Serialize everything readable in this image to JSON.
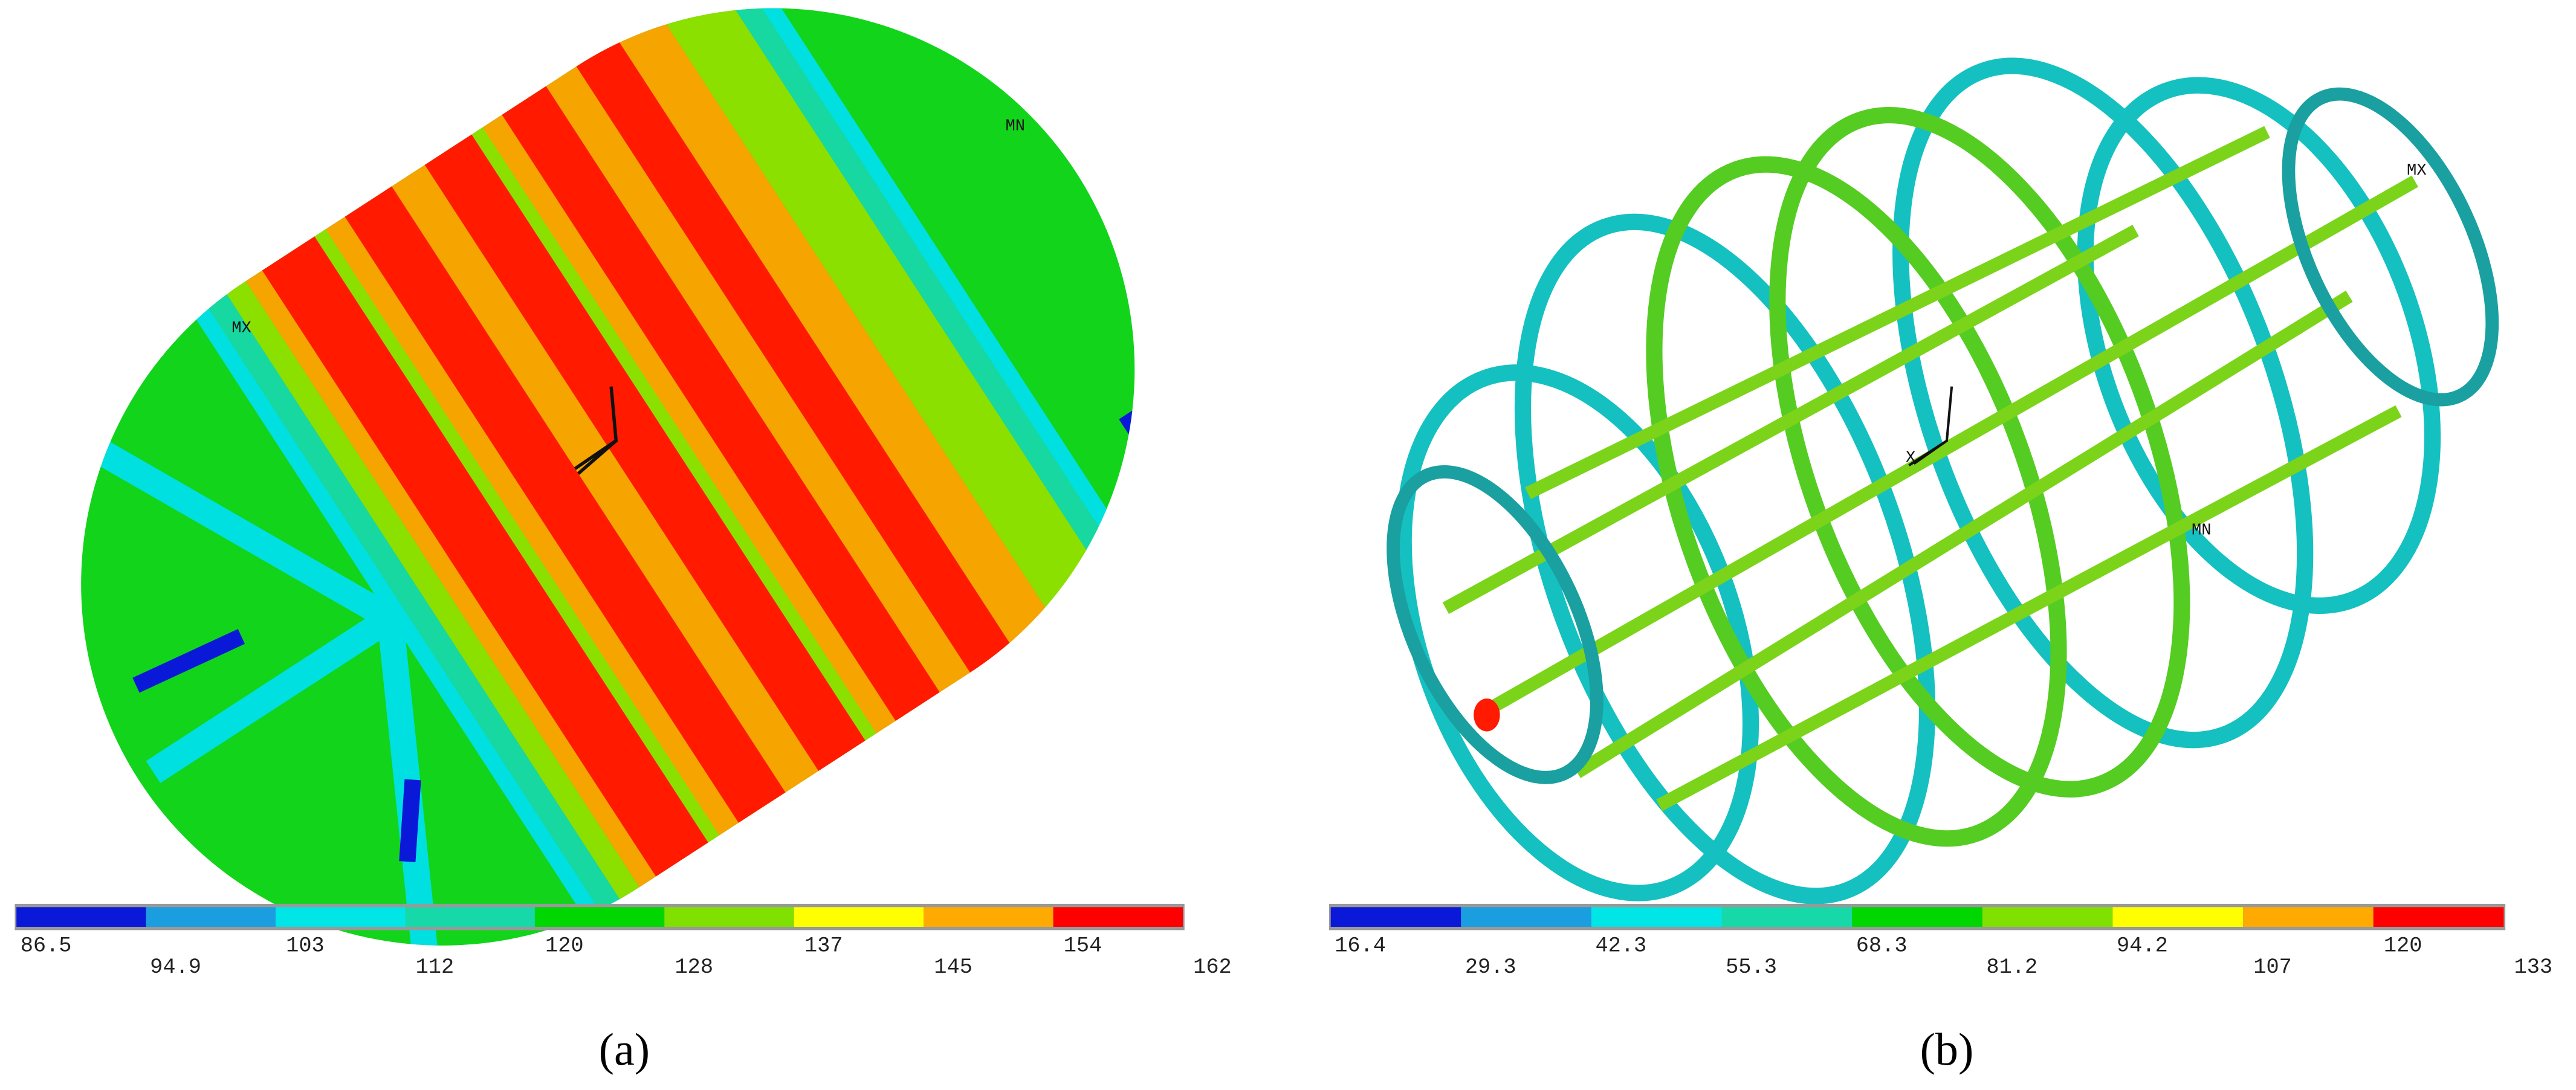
{
  "panels": [
    {
      "caption": "(a)",
      "annotations": [
        "MX",
        "MN"
      ],
      "legend": [
        86.5,
        94.9,
        103,
        112,
        120,
        128,
        137,
        145,
        154,
        162
      ]
    },
    {
      "caption": "(b)",
      "annotations": [
        "MX",
        "MN",
        "X"
      ],
      "legend": [
        16.4,
        29.3,
        42.3,
        55.3,
        68.3,
        81.2,
        94.2,
        107,
        120,
        133
      ]
    }
  ]
}
